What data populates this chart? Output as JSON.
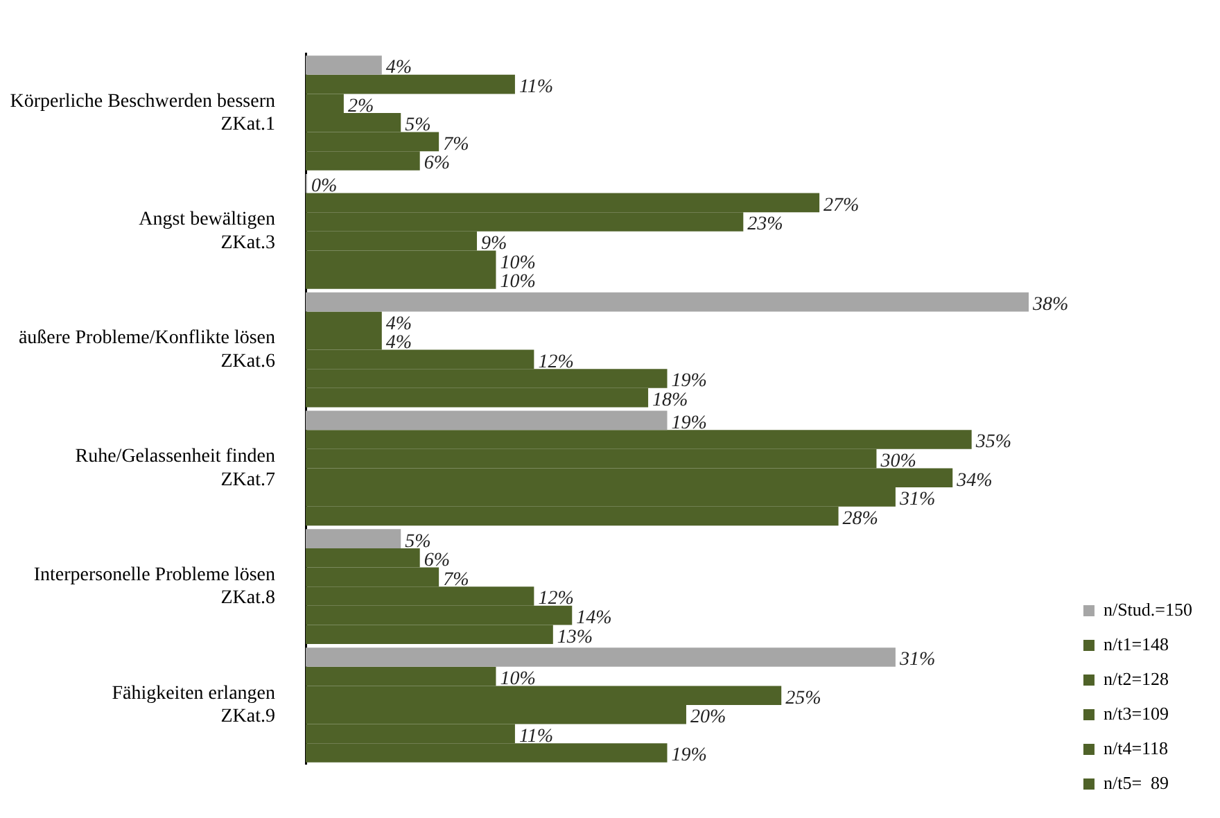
{
  "chart_data": {
    "type": "bar",
    "orientation": "horizontal",
    "categories": [
      "Körperliche Beschwerden bessern\nZKat.1",
      "Angst bewältigen\nZKat.3",
      "äußere Probleme/Konflikte lösen\nZKat.6",
      "Ruhe/Gelassenheit finden\nZKat.7",
      "Interpersonelle Probleme lösen\nZKat.8",
      "Fähigkeiten erlangen\nZKat.9"
    ],
    "series": [
      {
        "name": "n/Stud.=150",
        "color": "#a6a6a6",
        "values": [
          4,
          0,
          38,
          19,
          5,
          31
        ],
        "value_labels": [
          "4%",
          "0%",
          "38%",
          "19%",
          "5%",
          "31%"
        ]
      },
      {
        "name": "n/t1=148",
        "color": "#4f6228",
        "values": [
          11,
          27,
          4,
          35,
          6,
          10
        ],
        "value_labels": [
          "11%",
          "27%",
          "4%",
          "35%",
          "6%",
          "10%"
        ]
      },
      {
        "name": "n/t2=128",
        "color": "#4f6228",
        "values": [
          2,
          23,
          4,
          30,
          7,
          25
        ],
        "value_labels": [
          "2%",
          "23%",
          "4%",
          "30%",
          "7%",
          "25%"
        ]
      },
      {
        "name": "n/t3=109",
        "color": "#4f6228",
        "values": [
          5,
          9,
          12,
          34,
          12,
          20
        ],
        "value_labels": [
          "5%",
          "9%",
          "12%",
          "34%",
          "12%",
          "20%"
        ]
      },
      {
        "name": "n/t4=118",
        "color": "#4f6228",
        "values": [
          7,
          10,
          19,
          31,
          14,
          11
        ],
        "value_labels": [
          "7%",
          "10%",
          "19%",
          "31%",
          "14%",
          "11%"
        ]
      },
      {
        "name": "n/t5=  89",
        "color": "#4f6228",
        "values": [
          6,
          10,
          18,
          28,
          13,
          19
        ],
        "value_labels": [
          "6%",
          "10%",
          "18%",
          "28%",
          "13%",
          "19%"
        ]
      }
    ],
    "grid": false,
    "legend": "bottom right"
  }
}
